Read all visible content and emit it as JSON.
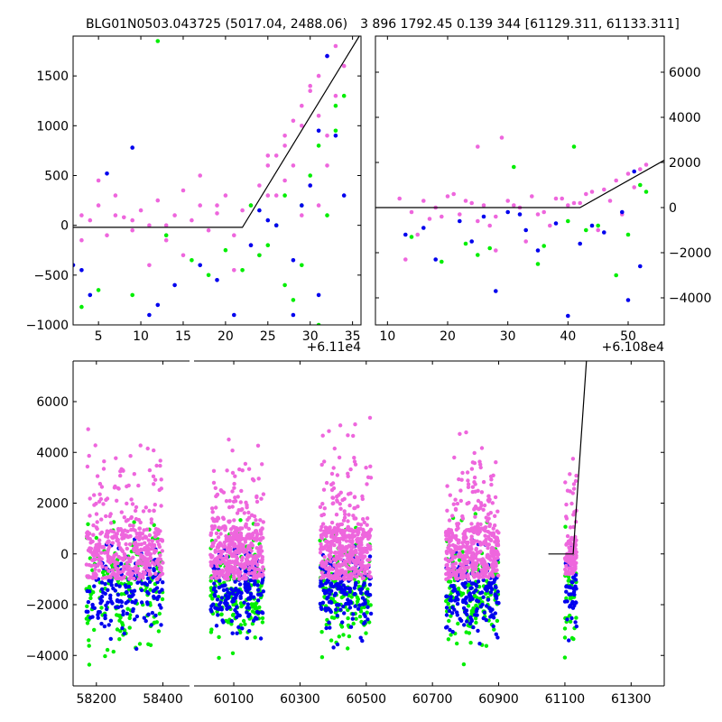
{
  "titles": {
    "left": "BLG01N0503.043725 (5017.04, 2488.06)",
    "right": "3 896 1792.45 0.139 344 [61129.311, 61133.311]"
  },
  "colors": {
    "g": "#00ee00",
    "b": "#0000ee",
    "m": "#ee66dd",
    "line": "#000000"
  },
  "chart_data": [
    {
      "type": "scatter",
      "name": "top-left zoom",
      "x_offset_label": "+6.11e4",
      "xlim": [
        2,
        36
      ],
      "ylim": [
        -1000,
        1900
      ],
      "xticks": [
        5,
        10,
        15,
        20,
        25,
        30,
        35
      ],
      "yticks": [
        -1000,
        -500,
        0,
        500,
        1000,
        1500
      ],
      "yaxis_side": "left",
      "model_line": {
        "x": [
          2,
          22,
          35.8
        ],
        "y": [
          -20,
          -20,
          1900
        ]
      },
      "series": [
        {
          "name": "magenta",
          "color": "m",
          "x": [
            3,
            4,
            5,
            6,
            7,
            8,
            9,
            10,
            11,
            12,
            13,
            14,
            15,
            16,
            17,
            18,
            19,
            20,
            21,
            22,
            23,
            24,
            25,
            26,
            27,
            28,
            29,
            30,
            31,
            32,
            33,
            34,
            3,
            5,
            7,
            9,
            11,
            13,
            15,
            17,
            19,
            21,
            23,
            25,
            27,
            29,
            30,
            31,
            32,
            33,
            32,
            31,
            30,
            29,
            28,
            27,
            26,
            25,
            24
          ],
          "y": [
            100,
            50,
            200,
            -100,
            300,
            80,
            -50,
            150,
            0,
            250,
            -150,
            100,
            350,
            50,
            200,
            -50,
            120,
            300,
            -100,
            150,
            200,
            400,
            600,
            700,
            900,
            1050,
            1200,
            1350,
            1500,
            1700,
            1800,
            1600,
            -150,
            450,
            100,
            50,
            -400,
            0,
            -300,
            500,
            200,
            -450,
            -200,
            300,
            800,
            1000,
            1400,
            1100,
            900,
            1300,
            600,
            200,
            400,
            100,
            600,
            450,
            300,
            700,
            -300
          ]
        },
        {
          "name": "green",
          "color": "g",
          "x": [
            3,
            5,
            12,
            18,
            23,
            24,
            26,
            27,
            28,
            29,
            30,
            31,
            32,
            33,
            34,
            33,
            31,
            29,
            27,
            25,
            22,
            20,
            16,
            13,
            9
          ],
          "y": [
            -820,
            -650,
            1850,
            -500,
            200,
            -300,
            0,
            300,
            -750,
            -400,
            500,
            800,
            100,
            1200,
            1300,
            950,
            -1000,
            200,
            -600,
            -200,
            -450,
            -250,
            -350,
            -100,
            -700
          ]
        },
        {
          "name": "blue",
          "color": "b",
          "x": [
            2,
            3,
            4,
            6,
            9,
            11,
            12,
            14,
            17,
            19,
            21,
            23,
            24,
            26,
            28,
            29,
            30,
            31,
            32,
            33,
            34,
            31,
            28,
            25
          ],
          "y": [
            -400,
            -450,
            -700,
            520,
            780,
            -900,
            -800,
            -600,
            -400,
            -550,
            -900,
            -200,
            150,
            0,
            -900,
            200,
            400,
            950,
            1700,
            900,
            300,
            -700,
            -350,
            50
          ]
        }
      ]
    },
    {
      "type": "scatter",
      "name": "top-right zoom",
      "x_offset_label": "+6.108e4",
      "xlim": [
        8,
        56
      ],
      "ylim": [
        -5200,
        7600
      ],
      "xticks": [
        10,
        20,
        30,
        40,
        50
      ],
      "yticks": [
        -4000,
        -2000,
        0,
        2000,
        4000,
        6000
      ],
      "yaxis_side": "right",
      "model_line": {
        "x": [
          8,
          42,
          56
        ],
        "y": [
          0,
          0,
          2100
        ]
      },
      "series": [
        {
          "name": "magenta",
          "color": "m",
          "x": [
            12,
            14,
            16,
            18,
            20,
            22,
            24,
            26,
            28,
            30,
            32,
            34,
            36,
            38,
            40,
            42,
            44,
            46,
            48,
            50,
            52,
            53,
            13,
            17,
            21,
            25,
            29,
            33,
            37,
            41,
            45,
            49,
            51,
            25,
            28,
            15,
            19,
            23,
            27,
            31,
            35,
            39,
            43,
            47
          ],
          "y": [
            400,
            -200,
            300,
            0,
            500,
            -300,
            200,
            100,
            -400,
            300,
            0,
            500,
            -200,
            400,
            100,
            200,
            700,
            800,
            1200,
            1500,
            1700,
            1900,
            -2300,
            -500,
            600,
            2700,
            3100,
            -1500,
            -800,
            200,
            -1000,
            -300,
            900,
            -600,
            -1900,
            -1200,
            -400,
            300,
            -800,
            100,
            -300,
            400,
            600,
            300
          ]
        },
        {
          "name": "green",
          "color": "g",
          "x": [
            14,
            19,
            23,
            27,
            31,
            35,
            40,
            41,
            43,
            45,
            48,
            50,
            52,
            53,
            36,
            25
          ],
          "y": [
            -1300,
            -2400,
            -1600,
            -1800,
            1800,
            -2500,
            -600,
            2700,
            -1000,
            -800,
            -3000,
            -1200,
            1000,
            700,
            -1700,
            -2100
          ]
        },
        {
          "name": "blue",
          "color": "b",
          "x": [
            13,
            16,
            18,
            22,
            24,
            28,
            30,
            33,
            35,
            38,
            40,
            42,
            44,
            46,
            49,
            50,
            51,
            52,
            26,
            32
          ],
          "y": [
            -1200,
            -900,
            -2300,
            -600,
            -1500,
            -3700,
            -200,
            -1000,
            -1900,
            -700,
            -4800,
            -1600,
            -800,
            -1100,
            -200,
            -4100,
            1600,
            -2600,
            -400,
            -300
          ]
        }
      ]
    },
    {
      "type": "scatter",
      "name": "bottom full light curve",
      "broken_axis": true,
      "segments": [
        {
          "xlim": [
            58130,
            58480
          ],
          "xticks": [
            58200,
            58400
          ]
        },
        {
          "xlim": [
            59980,
            61400
          ],
          "xticks": [
            60100,
            60300,
            60500,
            60700,
            60900,
            61100,
            61300
          ]
        }
      ],
      "ylim": [
        -5200,
        7600
      ],
      "yticks": [
        -4000,
        -2000,
        0,
        2000,
        4000,
        6000
      ],
      "yaxis_side": "left",
      "model_line": {
        "x": [
          61050,
          61125,
          61165
        ],
        "y": [
          0,
          0,
          7600
        ]
      },
      "seasons": [
        {
          "x0": 58170,
          "x1": 58400,
          "band_low": -1000,
          "band_high": 1000
        },
        {
          "x0": 60030,
          "x1": 60190,
          "band_low": -1000,
          "band_high": 1100
        },
        {
          "x0": 60360,
          "x1": 60515,
          "band_low": -1000,
          "band_high": 1050
        },
        {
          "x0": 60740,
          "x1": 60900,
          "band_low": -1000,
          "band_high": 1050
        },
        {
          "x0": 61100,
          "x1": 61135,
          "band_low": -800,
          "band_high": 700
        }
      ]
    }
  ]
}
